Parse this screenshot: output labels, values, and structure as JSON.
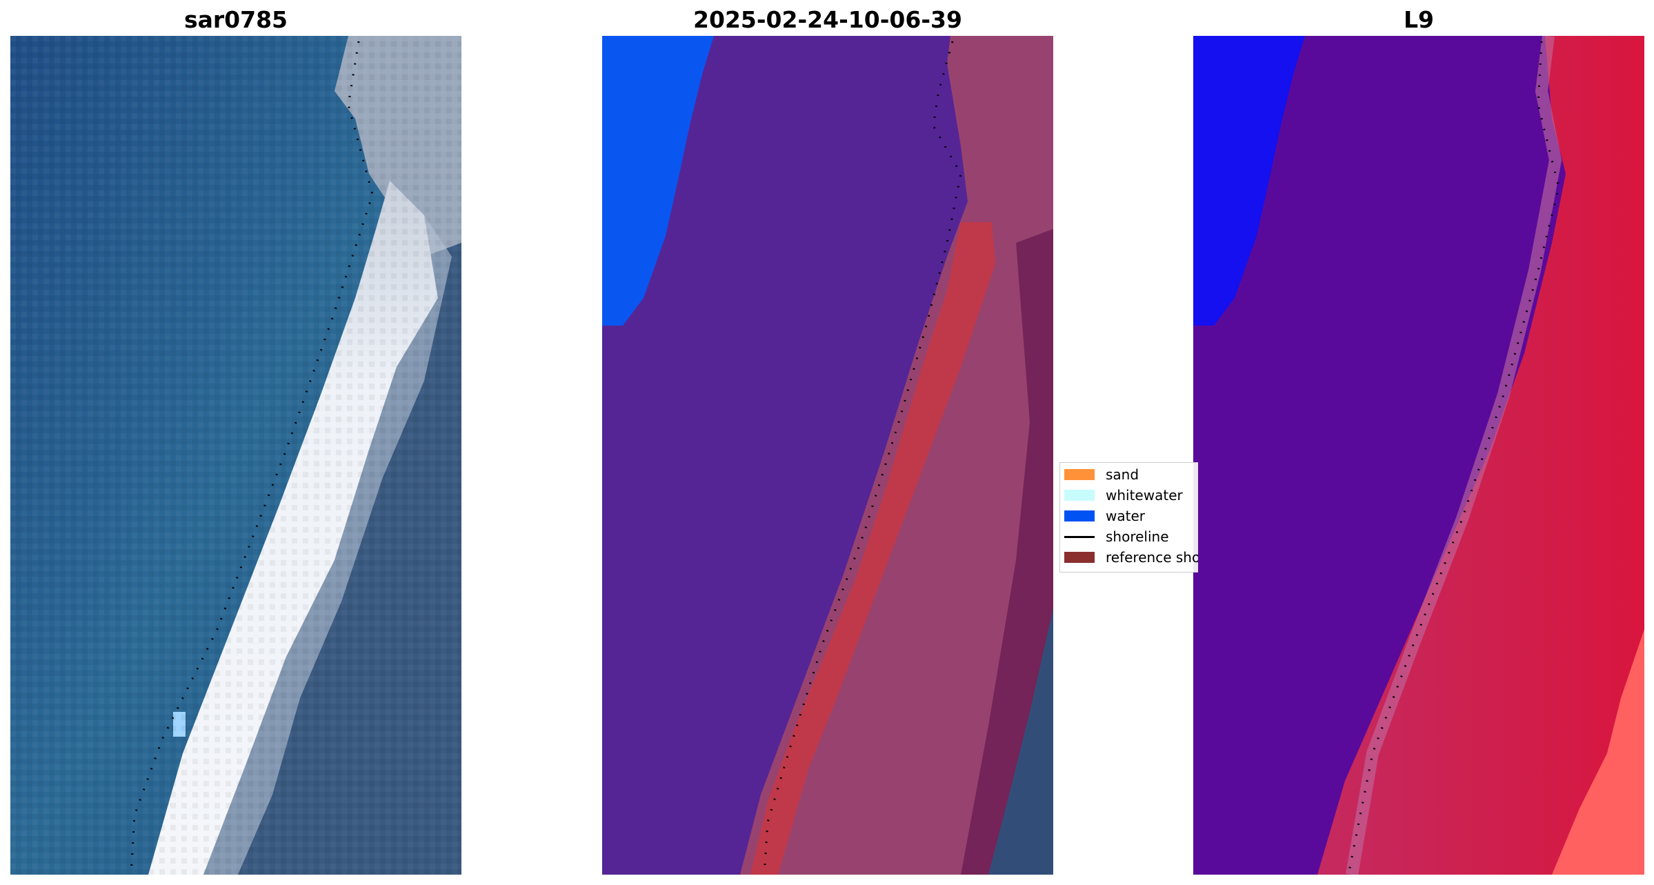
{
  "panels": [
    {
      "title": "sar0785"
    },
    {
      "title": "2025-02-24-10-06-39"
    },
    {
      "title": "L9"
    }
  ],
  "legend": {
    "items": [
      {
        "label": "sand",
        "color": "#ff9238",
        "kind": "patch"
      },
      {
        "label": "whitewater",
        "color": "#c8fcfc",
        "kind": "patch"
      },
      {
        "label": "water",
        "color": "#0052f2",
        "kind": "patch"
      },
      {
        "label": "shoreline",
        "color": "#000000",
        "kind": "line"
      },
      {
        "label": "reference shoreline",
        "color": "#8b2e2e",
        "kind": "patch"
      }
    ]
  },
  "colors": {
    "ocean_rgb": "#2c6a96",
    "surf_white": "#e9edf5",
    "land_rgb": "#3a5a80",
    "classified_other": "#552596",
    "classified_land": "#96406e",
    "classified_sand_band": "#c0394a",
    "mndwi_water": "#5a0a9a",
    "mndwi_land": "#d01a4a",
    "mndwi_bright": "#1414f0"
  }
}
